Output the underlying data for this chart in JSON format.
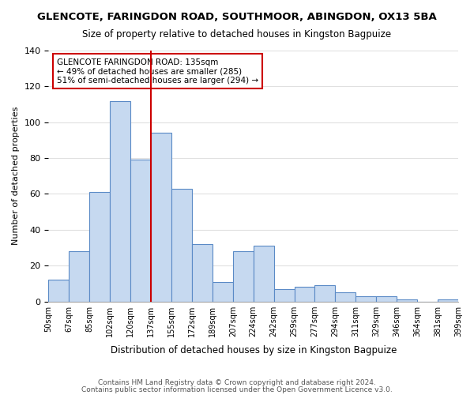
{
  "title": "GLENCOTE, FARINGDON ROAD, SOUTHMOOR, ABINGDON, OX13 5BA",
  "subtitle": "Size of property relative to detached houses in Kingston Bagpuize",
  "xlabel": "Distribution of detached houses by size in Kingston Bagpuize",
  "ylabel": "Number of detached properties",
  "bin_labels": [
    "50sqm",
    "67sqm",
    "85sqm",
    "102sqm",
    "120sqm",
    "137sqm",
    "155sqm",
    "172sqm",
    "189sqm",
    "207sqm",
    "224sqm",
    "242sqm",
    "259sqm",
    "277sqm",
    "294sqm",
    "311sqm",
    "329sqm",
    "346sqm",
    "364sqm",
    "381sqm",
    "399sqm"
  ],
  "bar_values": [
    12,
    28,
    61,
    112,
    79,
    94,
    63,
    32,
    11,
    28,
    31,
    7,
    8,
    9,
    5,
    3,
    3,
    1,
    0,
    1
  ],
  "bar_color": "#c6d9f0",
  "bar_edge_color": "#5a8ac6",
  "vline_color": "#cc0000",
  "annotation_title": "GLENCOTE FARINGDON ROAD: 135sqm",
  "annotation_line1": "← 49% of detached houses are smaller (285)",
  "annotation_line2": "51% of semi-detached houses are larger (294) →",
  "annotation_box_color": "#ffffff",
  "annotation_box_edge": "#cc0000",
  "footer1": "Contains HM Land Registry data © Crown copyright and database right 2024.",
  "footer2": "Contains public sector information licensed under the Open Government Licence v3.0.",
  "ylim": [
    0,
    140
  ],
  "background_color": "#ffffff",
  "grid_color": "#e0e0e0"
}
